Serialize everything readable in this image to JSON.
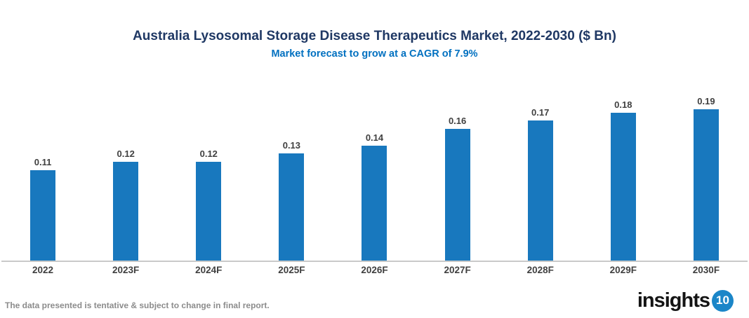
{
  "header": {
    "title": "Australia Lysosomal Storage Disease Therapeutics Market, 2022-2030 ($ Bn)",
    "subtitle": "Market forecast to grow at a CAGR of 7.9%"
  },
  "chart_data": {
    "type": "bar",
    "categories": [
      "2022",
      "2023F",
      "2024F",
      "2025F",
      "2026F",
      "2027F",
      "2028F",
      "2029F",
      "2030F"
    ],
    "values": [
      0.11,
      0.12,
      0.12,
      0.13,
      0.14,
      0.16,
      0.17,
      0.18,
      0.19
    ],
    "title": "Australia Lysosomal Storage Disease Therapeutics Market, 2022-2030 ($ Bn)",
    "subtitle": "Market forecast to grow at a CAGR of 7.9%",
    "xlabel": "",
    "ylabel": "",
    "ylim": [
      0,
      0.2
    ],
    "grid": false,
    "legend": false,
    "value_label_format": "2-decimals",
    "bar_color": "#1878BE",
    "axis_line_color": "#C9C9C9",
    "label_color": "#404040"
  },
  "footer": {
    "disclaimer": "The data presented is tentative & subject to change in final report.",
    "logo_text": "insights",
    "logo_badge": "10"
  },
  "colors": {
    "title": "#1F3864",
    "subtitle": "#0070C0",
    "logo_badge_bg": "#1B86C8",
    "disclaimer": "#8C8C8C"
  }
}
